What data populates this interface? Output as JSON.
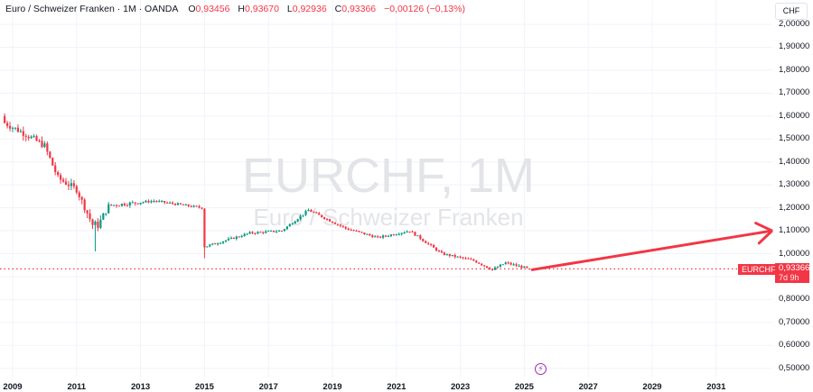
{
  "legend": {
    "title": "Euro / Schweizer Franken · 1M · OANDA",
    "open_label": "O",
    "open": "0,93456",
    "high_label": "H",
    "high": "0,93670",
    "low_label": "L",
    "low": "0,92936",
    "close_label": "C",
    "close": "0,93366",
    "change": "−0,00126 (−0,13%)"
  },
  "currency_button": "CHF",
  "watermark": {
    "symbol": "EURCHF, 1M",
    "name": "Euro / Schweizer Franken"
  },
  "price_badge": {
    "symbol": "EURCHF",
    "price": "0,93366",
    "countdown": "7d 9h"
  },
  "colors": {
    "up": "#089981",
    "down": "#f23645",
    "grid": "#f0f3fa",
    "arrow": "#f23645",
    "event": "#a22bb0"
  },
  "chart_data": {
    "type": "candlestick",
    "title": "Euro / Schweizer Franken · 1M · OANDA",
    "symbol": "EURCHF",
    "interval": "1M",
    "ylabel": "CHF",
    "ylim": [
      0.5,
      2.0
    ],
    "y_ticks": [
      "2,00000",
      "1,90000",
      "1,80000",
      "1,70000",
      "1,60000",
      "1,50000",
      "1,40000",
      "1,30000",
      "1,20000",
      "1,10000",
      "1,00000",
      "0,90000",
      "0,80000",
      "0,70000",
      "0,60000",
      "0,50000"
    ],
    "x_ticks": [
      "2009",
      "2011",
      "2013",
      "2015",
      "2017",
      "2019",
      "2021",
      "2023",
      "2025",
      "2027",
      "2029",
      "2031"
    ],
    "last": {
      "open": 0.93456,
      "high": 0.9367,
      "low": 0.92936,
      "close": 0.93366,
      "change": -0.00126,
      "change_pct": -0.13
    },
    "close_path_yearly": [
      {
        "x": "2008-10",
        "close": 1.57
      },
      {
        "x": "2009-06",
        "close": 1.52
      },
      {
        "x": "2010-01",
        "close": 1.47
      },
      {
        "x": "2010-06",
        "close": 1.33
      },
      {
        "x": "2011-01",
        "close": 1.28
      },
      {
        "x": "2011-08",
        "close": 1.1
      },
      {
        "x": "2012-01",
        "close": 1.21
      },
      {
        "x": "2013-06",
        "close": 1.23
      },
      {
        "x": "2014-12",
        "close": 1.2
      },
      {
        "x": "2015-01",
        "close": 1.03
      },
      {
        "x": "2016-06",
        "close": 1.09
      },
      {
        "x": "2017-06",
        "close": 1.1
      },
      {
        "x": "2018-04",
        "close": 1.19
      },
      {
        "x": "2019-06",
        "close": 1.11
      },
      {
        "x": "2020-06",
        "close": 1.07
      },
      {
        "x": "2021-06",
        "close": 1.1
      },
      {
        "x": "2022-06",
        "close": 1.0
      },
      {
        "x": "2023-06",
        "close": 0.97
      },
      {
        "x": "2024-01",
        "close": 0.93
      },
      {
        "x": "2024-06",
        "close": 0.96
      },
      {
        "x": "2025-03",
        "close": 0.93366
      }
    ],
    "annotation_arrow": {
      "from": {
        "x": "2025-04",
        "y": 0.93
      },
      "to": {
        "x": "2032-10",
        "y": 1.1
      },
      "color": "#f23645"
    },
    "current_price_line": 0.93366,
    "grid": true
  }
}
